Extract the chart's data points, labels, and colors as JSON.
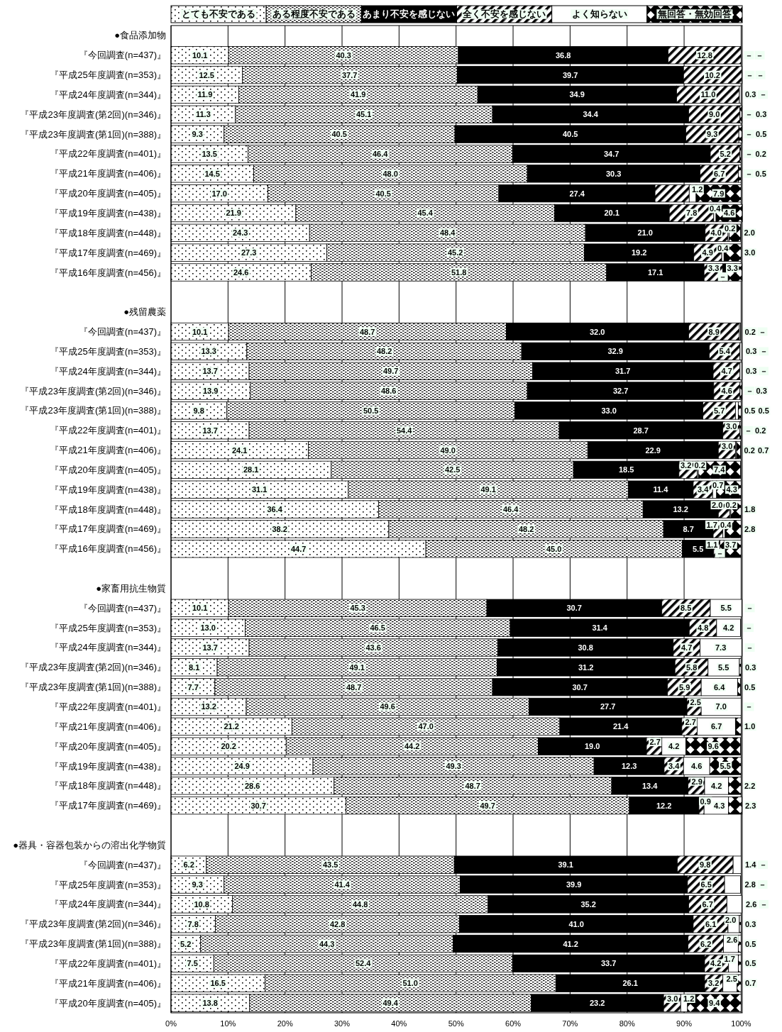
{
  "chart_data": {
    "type": "bar",
    "orientation": "horizontal",
    "stacked": true,
    "legend": "top",
    "grid": "x",
    "xlim": [
      0,
      100.2
    ],
    "xticks": [
      {
        "value": 0,
        "label": "0%"
      },
      {
        "value": 10,
        "label": "10%"
      },
      {
        "value": 20,
        "label": "20%"
      },
      {
        "value": 30,
        "label": "30%"
      },
      {
        "value": 40,
        "label": "40%"
      },
      {
        "value": 50,
        "label": "50%"
      },
      {
        "value": 60,
        "label": "60%"
      },
      {
        "value": 70,
        "label": "70%"
      },
      {
        "value": 80,
        "label": "80%"
      },
      {
        "value": 90,
        "label": "90%"
      },
      {
        "value": 100,
        "label": "100%"
      }
    ],
    "categories": [
      "●食品添加物",
      "『今回調査(n=437)』",
      "『平成25年度調査(n=353)』",
      "『平成24年度調査(n=344)』",
      "『平成23年度調査(第2回)(n=346)』",
      "『平成23年度調査(第1回)(n=388)』",
      "『平成22年度調査(n=401)』",
      "『平成21年度調査(n=406)』",
      "『平成20年度調査(n=405)』",
      "『平成19年度調査(n=438)』",
      "『平成18年度調査(n=448)』",
      "『平成17年度調査(n=469)』",
      "『平成16年度調査(n=456)』",
      null,
      "●残留農薬",
      "『今回調査(n=437)』",
      "『平成25年度調査(n=353)』",
      "『平成24年度調査(n=344)』",
      "『平成23年度調査(第2回)(n=346)』",
      "『平成23年度調査(第1回)(n=388)』",
      "『平成22年度調査(n=401)』",
      "『平成21年度調査(n=406)』",
      "『平成20年度調査(n=405)』",
      "『平成19年度調査(n=438)』",
      "『平成18年度調査(n=448)』",
      "『平成17年度調査(n=469)』",
      "『平成16年度調査(n=456)』",
      null,
      "●家畜用抗生物質",
      "『今回調査(n=437)』",
      "『平成25年度調査(n=353)』",
      "『平成24年度調査(n=344)』",
      "『平成23年度調査(第2回)(n=346)』",
      "『平成23年度調査(第1回)(n=388)』",
      "『平成22年度調査(n=401)』",
      "『平成21年度調査(n=406)』",
      "『平成20年度調査(n=405)』",
      "『平成19年度調査(n=438)』",
      "『平成18年度調査(n=448)』",
      "『平成17年度調査(n=469)』",
      null,
      "●器具・容器包装からの溶出化学物質",
      "『今回調査(n=437)』",
      "『平成25年度調査(n=353)』",
      "『平成24年度調査(n=344)』",
      "『平成23年度調査(第2回)(n=346)』",
      "『平成23年度調査(第1回)(n=388)』",
      "『平成22年度調査(n=401)』",
      "『平成21年度調査(n=406)』",
      "『平成20年度調査(n=405)』"
    ],
    "series": [
      {
        "name": "とても不安である",
        "color": "#000000",
        "values": [
          null,
          10.1,
          12.5,
          11.9,
          11.3,
          9.3,
          13.5,
          14.5,
          17.0,
          21.9,
          24.3,
          27.3,
          24.6,
          null,
          null,
          10.1,
          13.3,
          13.7,
          13.9,
          9.8,
          13.7,
          24.1,
          28.1,
          31.1,
          36.4,
          38.2,
          44.7,
          null,
          null,
          10.1,
          13.0,
          13.7,
          8.1,
          7.7,
          13.2,
          21.2,
          20.2,
          24.9,
          28.6,
          30.7,
          null,
          null,
          6.2,
          9.3,
          10.8,
          7.8,
          5.2,
          7.5,
          16.5,
          13.8
        ],
        "value_labels": [
          null,
          "10.1",
          "12.5",
          "11.9",
          "11.3",
          "9.3",
          "13.5",
          "14.5",
          "17.0",
          "21.9",
          "24.3",
          "27.3",
          "24.6",
          null,
          null,
          "10.1",
          "13.3",
          "13.7",
          "13.9",
          "9.8",
          "13.7",
          "24.1",
          "28.1",
          "31.1",
          "36.4",
          "38.2",
          "44.7",
          null,
          null,
          "10.1",
          "13.0",
          "13.7",
          "8.1",
          "7.7",
          "13.2",
          "21.2",
          "20.2",
          "24.9",
          "28.6",
          "30.7",
          null,
          null,
          "6.2",
          "9.3",
          "10.8",
          "7.8",
          "5.2",
          "7.5",
          "16.5",
          "13.8"
        ]
      },
      {
        "name": "ある程度不安である",
        "color": "#000000",
        "values": [
          null,
          40.3,
          37.7,
          41.9,
          45.1,
          40.5,
          46.4,
          48.0,
          40.5,
          45.4,
          48.4,
          45.2,
          51.8,
          null,
          null,
          48.7,
          48.2,
          49.7,
          48.6,
          50.5,
          54.4,
          49.0,
          42.5,
          49.1,
          46.4,
          48.2,
          45.0,
          null,
          null,
          45.3,
          46.5,
          43.6,
          49.1,
          48.7,
          49.6,
          47.0,
          44.2,
          49.3,
          48.7,
          49.7,
          null,
          null,
          43.5,
          41.4,
          44.8,
          42.8,
          44.3,
          52.4,
          51.0,
          49.4
        ],
        "value_labels": [
          null,
          "40.3",
          "37.7",
          "41.9",
          "45.1",
          "40.5",
          "46.4",
          "48.0",
          "40.5",
          "45.4",
          "48.4",
          "45.2",
          "51.8",
          null,
          null,
          "48.7",
          "48.2",
          "49.7",
          "48.6",
          "50.5",
          "54.4",
          "49.0",
          "42.5",
          "49.1",
          "46.4",
          "48.2",
          "45.0",
          null,
          null,
          "45.3",
          "46.5",
          "43.6",
          "49.1",
          "48.7",
          "49.6",
          "47.0",
          "44.2",
          "49.3",
          "48.7",
          "49.7",
          null,
          null,
          "43.5",
          "41.4",
          "44.8",
          "42.8",
          "44.3",
          "52.4",
          "51.0",
          "49.4"
        ]
      },
      {
        "name": "あまり不安を感じない",
        "color": "#000000",
        "values": [
          null,
          36.8,
          39.7,
          34.9,
          34.4,
          40.5,
          34.7,
          30.3,
          27.4,
          20.1,
          21.0,
          19.2,
          17.1,
          null,
          null,
          32.0,
          32.9,
          31.7,
          32.7,
          33.0,
          28.7,
          22.9,
          18.5,
          11.4,
          13.2,
          8.7,
          5.5,
          null,
          null,
          30.7,
          31.4,
          30.8,
          31.2,
          30.7,
          27.7,
          21.4,
          19.0,
          12.3,
          13.4,
          12.2,
          null,
          null,
          39.1,
          39.9,
          35.2,
          41.0,
          41.2,
          33.7,
          26.1,
          23.2
        ],
        "value_labels": [
          null,
          "36.8",
          "39.7",
          "34.9",
          "34.4",
          "40.5",
          "34.7",
          "30.3",
          "27.4",
          "20.1",
          "21.0",
          "19.2",
          "17.1",
          null,
          null,
          "32.0",
          "32.9",
          "31.7",
          "32.7",
          "33.0",
          "28.7",
          "22.9",
          "18.5",
          "11.4",
          "13.2",
          "8.7",
          "5.5",
          null,
          null,
          "30.7",
          "31.4",
          "30.8",
          "31.2",
          "30.7",
          "27.7",
          "21.4",
          "19.0",
          "12.3",
          "13.4",
          "12.2",
          null,
          null,
          "39.1",
          "39.9",
          "35.2",
          "41.0",
          "41.2",
          "33.7",
          "26.1",
          "23.2"
        ]
      },
      {
        "name": "全く不安を感じない",
        "color": "#000000",
        "values": [
          null,
          12.8,
          10.2,
          11.0,
          9.0,
          9.3,
          5.2,
          6.7,
          6.0,
          7.8,
          4.0,
          4.9,
          3.3,
          null,
          null,
          8.9,
          5.4,
          4.7,
          4.6,
          5.7,
          3.0,
          3.0,
          3.2,
          3.4,
          2.0,
          1.7,
          1.1,
          null,
          null,
          8.5,
          4.8,
          4.7,
          5.8,
          5.9,
          2.5,
          2.7,
          2.7,
          3.4,
          2.9,
          0.9,
          null,
          null,
          9.8,
          6.5,
          6.7,
          6.1,
          6.2,
          4.2,
          3.2,
          3.0
        ],
        "value_labels": [
          null,
          "12.8",
          "10.2",
          "11.0",
          "9.0",
          "9.3",
          "5.2",
          "6.7",
          null,
          "7.8",
          "4.0",
          "4.9",
          "3.3",
          null,
          null,
          "8.9",
          "5.4",
          "4.7",
          "4.6",
          "5.7",
          "3.0",
          "3.0",
          "3.2",
          "3.4",
          "2.0",
          "1.7",
          "1.1",
          null,
          null,
          "8.5",
          "4.8",
          "4.7",
          "5.8",
          "5.9",
          "2.5",
          "2.7",
          "2.7",
          "3.4",
          "2.9",
          "0.9",
          null,
          null,
          "9.8",
          "6.5",
          "6.7",
          "6.1",
          "6.2",
          "4.2",
          "3.2",
          "3.0"
        ]
      },
      {
        "name": "よく知らない",
        "color": "#ffffff",
        "values": [
          null,
          0,
          0,
          0.3,
          0,
          0,
          0,
          0,
          1.2,
          0.4,
          0.2,
          0.4,
          0,
          null,
          null,
          0.2,
          0.3,
          0.3,
          0,
          0.5,
          0,
          0.2,
          0.2,
          0.7,
          0.2,
          0.4,
          0,
          null,
          null,
          5.5,
          4.2,
          7.3,
          5.5,
          6.4,
          7.0,
          6.7,
          4.2,
          4.6,
          4.2,
          4.3,
          null,
          null,
          1.4,
          2.8,
          2.6,
          2.0,
          2.6,
          1.7,
          2.5,
          1.2
        ],
        "value_labels": [
          null,
          "－",
          "－",
          "0.3",
          "－",
          "－",
          "－",
          "－",
          "1.2",
          "0.4",
          "0.2",
          "0.4",
          "－",
          null,
          null,
          "0.2",
          "0.3",
          "0.3",
          "－",
          "0.5",
          "－",
          "0.2",
          "0.2",
          "0.7",
          "0.2",
          "0.4",
          "－",
          null,
          null,
          "5.5",
          "4.2",
          "7.3",
          "5.5",
          "6.4",
          "7.0",
          "6.7",
          "4.2",
          "4.6",
          "4.2",
          "4.3",
          null,
          null,
          "1.4",
          "2.8",
          "2.6",
          "2.0",
          "2.6",
          "1.7",
          "2.5",
          "1.2"
        ]
      },
      {
        "name": "無回答・無効回答",
        "color": "#000000",
        "values": [
          null,
          0,
          0,
          0,
          0.3,
          0.5,
          0.2,
          0.5,
          7.9,
          4.6,
          2.0,
          3.0,
          3.3,
          null,
          null,
          0,
          0,
          0,
          0.3,
          0.5,
          0.2,
          0.7,
          7.4,
          4.3,
          1.8,
          2.8,
          3.7,
          null,
          null,
          0,
          0,
          0,
          0.3,
          0.5,
          0,
          1.0,
          9.6,
          5.5,
          2.2,
          2.3,
          null,
          null,
          0,
          0,
          0,
          0.3,
          0.5,
          0.5,
          0.7,
          9.4
        ],
        "value_labels": [
          null,
          "－",
          "－",
          "－",
          "0.3",
          "0.5",
          "0.2",
          "0.5",
          "7.9",
          "4.6",
          "2.0",
          "3.0",
          "3.3",
          null,
          null,
          "－",
          "－",
          "－",
          "0.3",
          "0.5",
          "0.2",
          "0.7",
          "7.4",
          "4.3",
          "1.8",
          "2.8",
          "3.7",
          null,
          null,
          "－",
          "－",
          "－",
          "0.3",
          "0.5",
          "－",
          "1.0",
          "9.6",
          "5.5",
          "2.2",
          "2.3",
          null,
          null,
          "－",
          "－",
          "－",
          "0.3",
          "0.5",
          "0.5",
          "0.7",
          "9.4"
        ]
      }
    ]
  }
}
